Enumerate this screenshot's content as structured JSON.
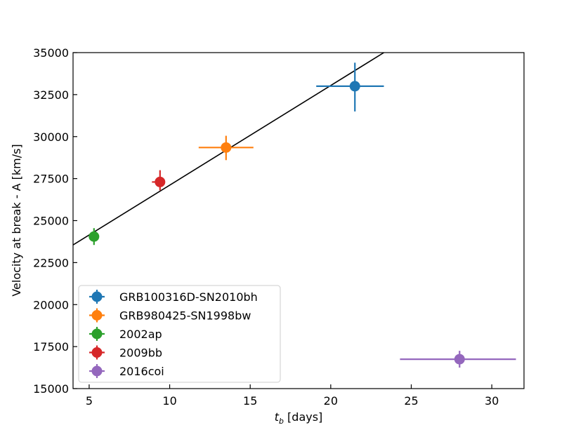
{
  "chart_data": {
    "type": "scatter",
    "title": "",
    "xlabel": "t_b [days]",
    "xlabel_main": "t",
    "xlabel_sub": "b",
    "xlabel_unit": " [days]",
    "ylabel": "Velocity at break - A [km/s]",
    "xlim": [
      4,
      32
    ],
    "ylim": [
      15000,
      35000
    ],
    "xticks": [
      5,
      10,
      15,
      20,
      25,
      30
    ],
    "xtick_labels": [
      "5",
      "10",
      "15",
      "20",
      "25",
      "30"
    ],
    "yticks": [
      15000,
      17500,
      20000,
      22500,
      25000,
      27500,
      30000,
      32500,
      35000
    ],
    "ytick_labels": [
      "15000",
      "17500",
      "20000",
      "22500",
      "25000",
      "27500",
      "30000",
      "32500",
      "35000"
    ],
    "grid": false,
    "legend_position": "lower-left",
    "series": [
      {
        "name": "GRB100316D-SN2010bh",
        "color": "#1f77b4",
        "x": 21.5,
        "y": 33000,
        "xerr": [
          2.4,
          1.8
        ],
        "yerr": [
          1500,
          1400
        ]
      },
      {
        "name": "GRB980425-SN1998bw",
        "color": "#ff7f0e",
        "x": 13.5,
        "y": 29350,
        "xerr": [
          1.7,
          1.7
        ],
        "yerr": [
          750,
          700
        ]
      },
      {
        "name": "2002ap",
        "color": "#2ca02c",
        "x": 5.3,
        "y": 24050,
        "xerr": [
          0.1,
          0.1
        ],
        "yerr": [
          500,
          500
        ]
      },
      {
        "name": "2009bb",
        "color": "#d62728",
        "x": 9.4,
        "y": 27300,
        "xerr": [
          0.5,
          0.3
        ],
        "yerr": [
          500,
          700
        ]
      },
      {
        "name": "2016coi",
        "color": "#9467bd",
        "x": 28.0,
        "y": 16750,
        "xerr": [
          3.7,
          3.5
        ],
        "yerr": [
          500,
          500
        ]
      }
    ],
    "fit_line": {
      "color": "#000000",
      "x": [
        4,
        23.3
      ],
      "y": [
        23550,
        35000
      ]
    }
  }
}
